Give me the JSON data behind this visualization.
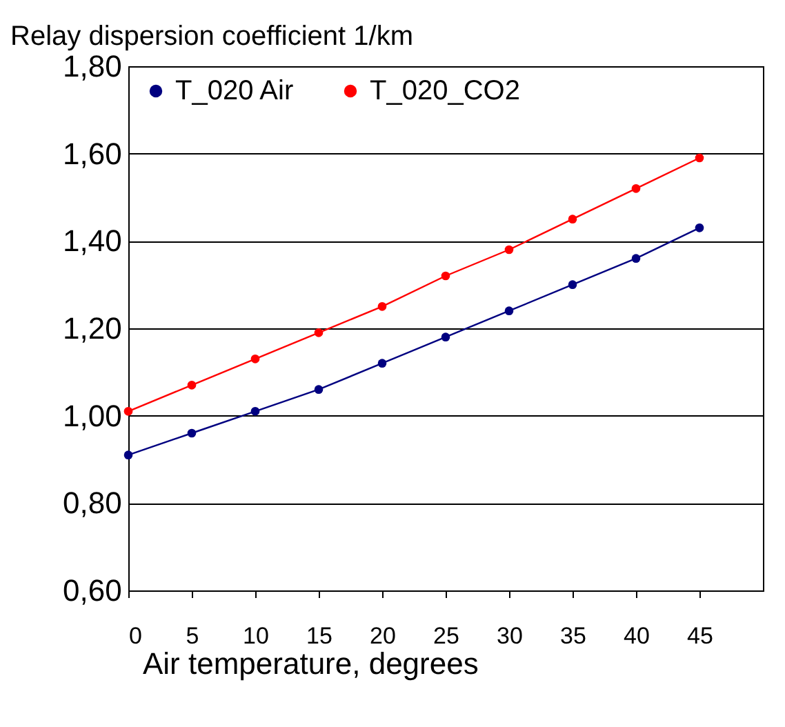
{
  "chart_data": {
    "type": "line",
    "xlabel": "Air temperature, degrees",
    "ylabel": "Relay dispersion coefficient 1/km",
    "x": [
      0,
      5,
      10,
      15,
      20,
      25,
      30,
      35,
      40,
      45
    ],
    "series": [
      {
        "name": "T_020 Air",
        "color": "#000080",
        "values": [
          0.91,
          0.96,
          1.01,
          1.06,
          1.12,
          1.18,
          1.24,
          1.3,
          1.36,
          1.43
        ]
      },
      {
        "name": "T_020_CO2",
        "color": "#ff0000",
        "values": [
          1.01,
          1.07,
          1.13,
          1.19,
          1.25,
          1.32,
          1.38,
          1.45,
          1.52,
          1.59
        ]
      }
    ],
    "xlim": [
      0,
      50
    ],
    "xticks": [
      0,
      5,
      10,
      15,
      20,
      25,
      30,
      35,
      40,
      45
    ],
    "ylim": [
      0.6,
      1.8
    ],
    "yticks": [
      {
        "value": 0.6,
        "label": "0,60"
      },
      {
        "value": 0.8,
        "label": "0,80"
      },
      {
        "value": 1.0,
        "label": "1,00"
      },
      {
        "value": 1.2,
        "label": "1,20"
      },
      {
        "value": 1.4,
        "label": "1,40"
      },
      {
        "value": 1.6,
        "label": "1,60"
      },
      {
        "value": 1.8,
        "label": "1,80"
      }
    ],
    "grid": "y",
    "legend": "top left",
    "marker": "circle",
    "line_style": "solid"
  }
}
